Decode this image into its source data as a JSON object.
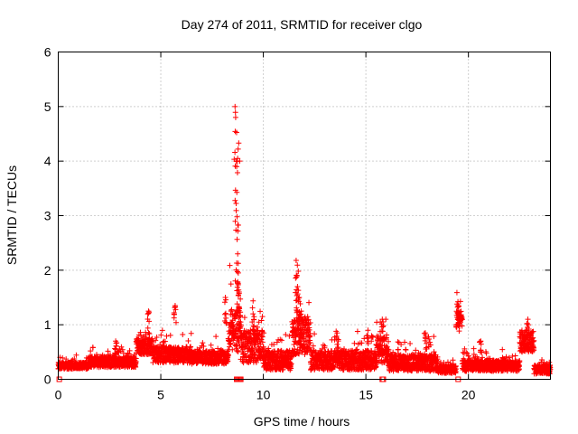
{
  "chart_data": {
    "type": "scatter",
    "title": "Day 274 of 2011, SRMTID for receiver clgo",
    "xlabel": "GPS time / hours",
    "ylabel": "SRMTID / TECUs",
    "xlim": [
      0,
      24
    ],
    "ylim": [
      0,
      6
    ],
    "xticks": [
      0,
      5,
      10,
      15,
      20
    ],
    "yticks": [
      0,
      1,
      2,
      3,
      4,
      5,
      6
    ],
    "grid": true,
    "marker": "plus",
    "color": "#ff0000",
    "sampling_interval_hours": 0.0166667,
    "baseline_level_tecu": 0.25,
    "activity_segments": [
      {
        "from": 0.0,
        "to": 1.5,
        "level": 0.25,
        "spread": 0.06
      },
      {
        "from": 1.5,
        "to": 3.8,
        "level": 0.32,
        "spread": 0.1
      },
      {
        "from": 3.8,
        "to": 4.6,
        "level": 0.6,
        "spread": 0.15
      },
      {
        "from": 4.6,
        "to": 6.5,
        "level": 0.45,
        "spread": 0.15
      },
      {
        "from": 6.5,
        "to": 8.3,
        "level": 0.4,
        "spread": 0.12
      },
      {
        "from": 8.3,
        "to": 8.9,
        "level": 0.9,
        "spread": 0.4
      },
      {
        "from": 8.9,
        "to": 10.0,
        "level": 0.6,
        "spread": 0.3
      },
      {
        "from": 10.0,
        "to": 11.4,
        "level": 0.35,
        "spread": 0.18
      },
      {
        "from": 11.4,
        "to": 12.3,
        "level": 0.8,
        "spread": 0.35
      },
      {
        "from": 12.3,
        "to": 15.5,
        "level": 0.35,
        "spread": 0.18
      },
      {
        "from": 15.5,
        "to": 16.1,
        "level": 0.55,
        "spread": 0.25
      },
      {
        "from": 16.1,
        "to": 18.5,
        "level": 0.3,
        "spread": 0.15
      },
      {
        "from": 18.5,
        "to": 19.4,
        "level": 0.18,
        "spread": 0.07
      },
      {
        "from": 19.4,
        "to": 19.7,
        "level": 1.1,
        "spread": 0.15
      },
      {
        "from": 19.7,
        "to": 22.5,
        "level": 0.25,
        "spread": 0.1
      },
      {
        "from": 22.5,
        "to": 23.2,
        "level": 0.7,
        "spread": 0.2
      },
      {
        "from": 23.2,
        "to": 24.0,
        "level": 0.18,
        "spread": 0.08
      }
    ],
    "peaks": [
      {
        "x": 2.8,
        "y": 0.7
      },
      {
        "x": 4.4,
        "y": 1.25
      },
      {
        "x": 5.7,
        "y": 1.35
      },
      {
        "x": 8.15,
        "y": 1.5
      },
      {
        "x": 8.62,
        "y": 5.0
      },
      {
        "x": 8.65,
        "y": 4.8
      },
      {
        "x": 8.68,
        "y": 4.0
      },
      {
        "x": 8.7,
        "y": 3.9
      },
      {
        "x": 8.72,
        "y": 2.98
      },
      {
        "x": 8.75,
        "y": 2.3
      },
      {
        "x": 8.78,
        "y": 1.95
      },
      {
        "x": 8.8,
        "y": 4.33
      },
      {
        "x": 8.82,
        "y": 1.6
      },
      {
        "x": 9.5,
        "y": 1.2
      },
      {
        "x": 11.6,
        "y": 2.18
      },
      {
        "x": 11.65,
        "y": 1.9
      },
      {
        "x": 11.75,
        "y": 1.5
      },
      {
        "x": 11.85,
        "y": 1.25
      },
      {
        "x": 13.6,
        "y": 0.85
      },
      {
        "x": 15.1,
        "y": 0.9
      },
      {
        "x": 15.8,
        "y": 1.1
      },
      {
        "x": 17.9,
        "y": 0.85
      },
      {
        "x": 19.5,
        "y": 1.35
      },
      {
        "x": 20.6,
        "y": 0.7
      },
      {
        "x": 22.9,
        "y": 1.1
      }
    ],
    "zero_markers_x": [
      0.05,
      8.7,
      8.75,
      8.8,
      8.85,
      8.9,
      15.8,
      15.85,
      19.5
    ]
  }
}
